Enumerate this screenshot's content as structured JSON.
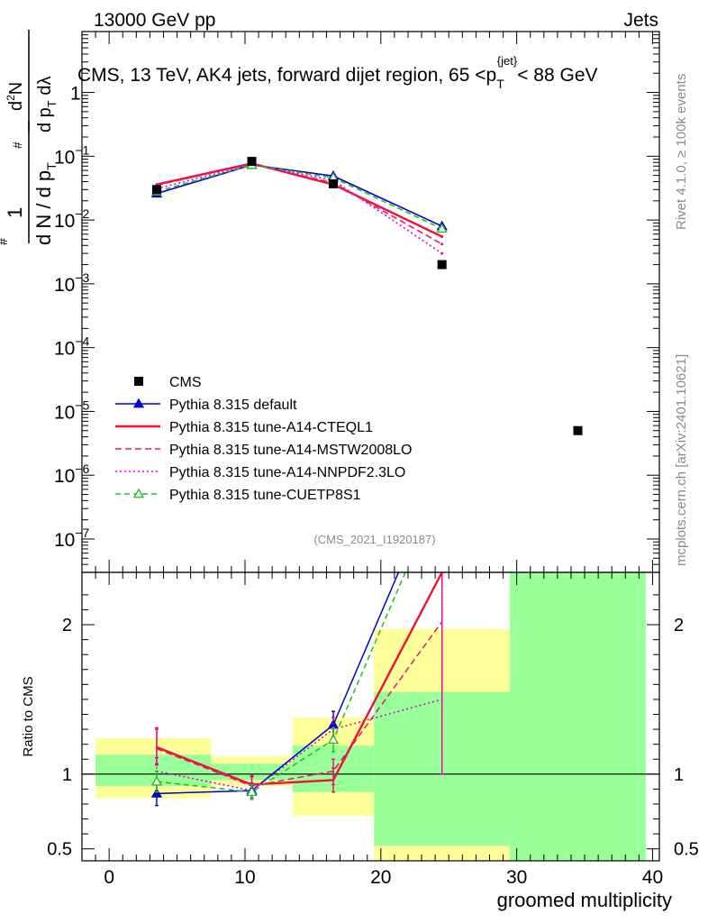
{
  "header": {
    "left_label": "13000 GeV pp",
    "right_label": "Jets"
  },
  "side_labels": {
    "rivet": "Rivet 4.1.0, ≥ 100k events",
    "mcplots": "mcplots.cern.ch [arXiv:2401.10621]"
  },
  "chart_data": [
    {
      "type": "scatter",
      "title_parts": {
        "prefix": "CMS, 13 TeV, AK4 jets, forward dijet region, 65 <p",
        "sub": "T",
        "sup": "{jet}",
        "suffix": "< 88 GeV"
      },
      "ylabel": "1/(dN/dp_T) d²N/(dp_T dλ)",
      "yscale": "log",
      "ylim": [
        3e-08,
        9
      ],
      "xlim": [
        -2,
        40.5
      ],
      "y_ticks": [
        {
          "value": 1e-07,
          "base": "10",
          "exp": "−7"
        },
        {
          "value": 1e-06,
          "base": "10",
          "exp": "−6"
        },
        {
          "value": 1e-05,
          "base": "10",
          "exp": "−5"
        },
        {
          "value": 0.0001,
          "base": "10",
          "exp": "−4"
        },
        {
          "value": 0.001,
          "base": "10",
          "exp": "−3"
        },
        {
          "value": 0.01,
          "base": "10",
          "exp": "−2"
        },
        {
          "value": 0.1,
          "base": "10",
          "exp": "−1"
        },
        {
          "value": 1,
          "base": "1",
          "exp": ""
        }
      ],
      "watermark": "(CMS_2021_I1920187)",
      "legend_position": "bottom-left",
      "data": {
        "name": "CMS",
        "x": [
          3.5,
          10.5,
          16.5,
          24.5,
          34.5
        ],
        "y": [
          0.03,
          0.083,
          0.037,
          0.002,
          5e-06
        ]
      },
      "series": [
        {
          "name": "Pythia 8.315 default",
          "color": "#0000cc",
          "dash": "",
          "marker": "filled-triangle",
          "x": [
            3.5,
            10.5,
            16.5,
            24.5
          ],
          "y": [
            0.026,
            0.073,
            0.049,
            0.008
          ]
        },
        {
          "name": "Pythia 8.315 tune-A14-CTEQL1",
          "color": "#ee1133",
          "dash": "",
          "marker": "",
          "x": [
            3.5,
            10.5,
            16.5,
            24.5
          ],
          "y": [
            0.036,
            0.077,
            0.036,
            0.0055
          ]
        },
        {
          "name": "Pythia 8.315 tune-A14-MSTW2008LO",
          "color": "#ee1177",
          "dash": "7,4",
          "marker": "",
          "x": [
            3.5,
            10.5,
            16.5,
            24.5
          ],
          "y": [
            0.035,
            0.076,
            0.038,
            0.0042
          ]
        },
        {
          "name": "Pythia 8.315 tune-A14-NNPDF2.3LO",
          "color": "#dd00cc",
          "dash": "2,3",
          "marker": "",
          "x": [
            3.5,
            10.5,
            16.5,
            24.5
          ],
          "y": [
            0.031,
            0.074,
            0.042,
            0.003
          ]
        },
        {
          "name": "Pythia 8.315 tune-CUETP8S1",
          "color": "#22bb22",
          "dash": "6,4",
          "marker": "open-triangle",
          "x": [
            3.5,
            10.5,
            16.5,
            24.5
          ],
          "y": [
            0.028,
            0.073,
            0.046,
            0.0073
          ]
        }
      ]
    },
    {
      "type": "line",
      "ylabel": "Ratio to CMS",
      "xlabel": "groomed multiplicity",
      "ylim": [
        0.42,
        2.35
      ],
      "xlim": [
        -2,
        40.5
      ],
      "x_ticks": [
        0,
        10,
        20,
        30,
        40
      ],
      "y_ticks": [
        0.5,
        1,
        2
      ],
      "bands": [
        {
          "x0": -1,
          "x1": 7.5,
          "yellow": [
            0.84,
            1.24
          ],
          "green": [
            0.92,
            1.13
          ]
        },
        {
          "x0": 7.5,
          "x1": 13.5,
          "yellow": [
            0.92,
            1.12
          ],
          "green": [
            0.96,
            1.07
          ]
        },
        {
          "x0": 13.5,
          "x1": 19.5,
          "yellow": [
            0.72,
            1.38
          ],
          "green": [
            0.88,
            1.19
          ]
        },
        {
          "x0": 19.5,
          "x1": 29.5,
          "yellow": [
            0.42,
            1.97
          ],
          "green": [
            0.52,
            1.55
          ]
        },
        {
          "x0": 29.5,
          "x1": 39.5,
          "yellow": [
            0.42,
            2.35
          ],
          "green": [
            0.42,
            2.35
          ]
        }
      ],
      "series": [
        {
          "name": "Pythia 8.315 default",
          "color": "#0000cc",
          "dash": "",
          "marker": "filled-triangle",
          "x": [
            3.5,
            10.5,
            16.5,
            21.3
          ],
          "y": [
            0.87,
            0.89,
            1.33,
            2.35
          ],
          "err": [
            [
              0.79,
              0.95
            ],
            [
              0.84,
              0.94
            ],
            [
              1.25,
              1.42
            ],
            null
          ]
        },
        {
          "name": "Pythia 8.315 tune-A14-CTEQL1",
          "color": "#ee1133",
          "dash": "",
          "marker": "",
          "x": [
            3.5,
            10.5,
            16.5,
            24.5
          ],
          "y": [
            1.18,
            0.93,
            0.96,
            2.35
          ],
          "err": [
            [
              1.07,
              1.31
            ],
            [
              0.87,
              0.99
            ],
            [
              0.88,
              1.04
            ],
            null
          ]
        },
        {
          "name": "Pythia 8.315 tune-A14-MSTW2008LO",
          "color": "#ee1177",
          "dash": "7,4",
          "marker": "",
          "x": [
            3.5,
            10.5,
            16.5,
            24.5
          ],
          "y": [
            1.17,
            0.92,
            1.02,
            2.02
          ],
          "err": [
            [
              1.06,
              1.3
            ],
            [
              0.86,
              0.98
            ],
            [
              0.93,
              1.1
            ],
            [
              1.0,
              2.35
            ]
          ]
        },
        {
          "name": "Pythia 8.315 tune-A14-NNPDF2.3LO",
          "color": "#dd00cc",
          "dash": "2,3",
          "marker": "",
          "x": [
            3.5,
            10.5,
            16.5,
            24.5
          ],
          "y": [
            1.02,
            0.89,
            1.3,
            1.5
          ],
          "err": [
            [
              0.94,
              1.11
            ],
            [
              0.84,
              0.94
            ],
            [
              1.21,
              1.38
            ],
            [
              1.0,
              2.35
            ]
          ]
        },
        {
          "name": "Pythia 8.315 tune-CUETP8S1",
          "color": "#22bb22",
          "dash": "6,4",
          "marker": "open-triangle",
          "x": [
            3.5,
            10.5,
            16.5,
            21.8
          ],
          "y": [
            0.95,
            0.88,
            1.23,
            2.35
          ],
          "err": [
            [
              0.88,
              1.02
            ],
            [
              0.83,
              0.93
            ],
            [
              1.15,
              1.31
            ],
            null
          ]
        }
      ]
    }
  ]
}
